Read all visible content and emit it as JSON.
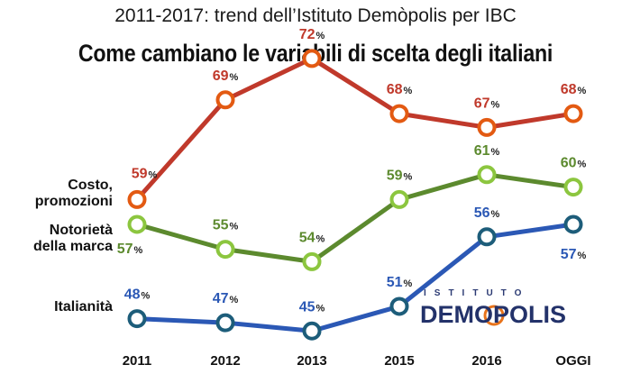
{
  "header": {
    "subtitle": "2011-2017: trend dell’Istituto Demòpolis per IBC",
    "title": "Come cambiano le variabili di scelta degli italiani"
  },
  "logo": {
    "top_text": "ISTITUTO",
    "main_text": "DEMOPOLIS"
  },
  "chart_data": {
    "type": "line",
    "categories": [
      "2011",
      "2012",
      "2013",
      "2015",
      "2016",
      "OGGI"
    ],
    "unit": "%",
    "grid": false,
    "legend": "left-side labels",
    "series": [
      {
        "name_lines": [
          "Costo,",
          "promozioni"
        ],
        "values": [
          59,
          69,
          72,
          68,
          67,
          68
        ],
        "color": "#c0392b",
        "marker_color": "#e35a12"
      },
      {
        "name_lines": [
          "Notorietà",
          "della marca"
        ],
        "values": [
          57,
          55,
          54,
          59,
          61,
          60
        ],
        "color": "#5c8a2e",
        "marker_color": "#8cc63f"
      },
      {
        "name_lines": [
          "Italianità"
        ],
        "values": [
          48,
          47,
          45,
          51,
          56,
          57
        ],
        "color": "#2b58b5",
        "marker_color": "#1d5d7a"
      }
    ]
  }
}
